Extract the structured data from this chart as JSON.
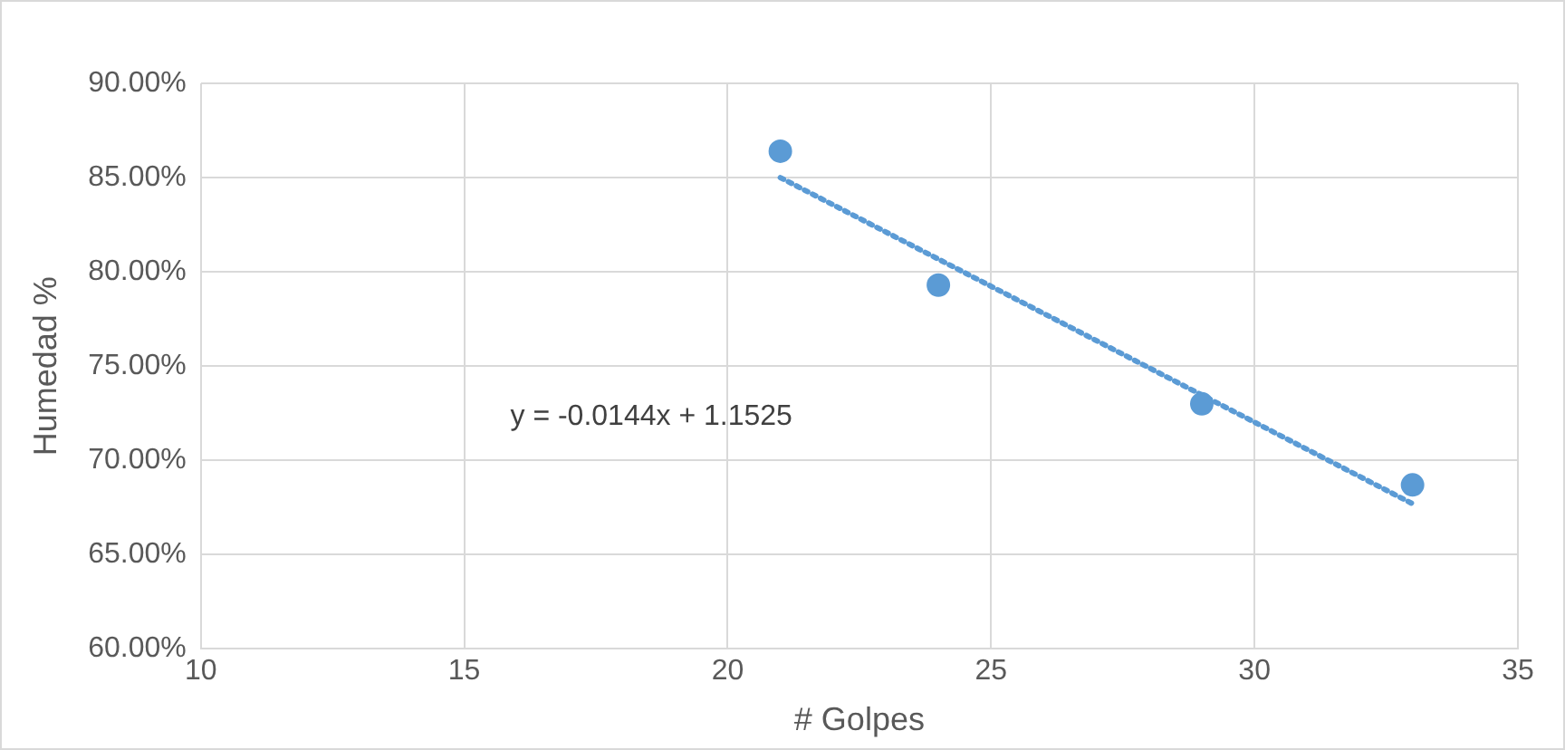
{
  "chart_data": {
    "type": "scatter",
    "xlabel": "# Golpes",
    "ylabel": "Humedad %",
    "xlim": [
      10,
      35
    ],
    "xticks": [
      10,
      15,
      20,
      25,
      30,
      35
    ],
    "ylim": [
      60,
      90
    ],
    "yticks": [
      {
        "value": 60,
        "label": "60.00%"
      },
      {
        "value": 65,
        "label": "65.00%"
      },
      {
        "value": 70,
        "label": "70.00%"
      },
      {
        "value": 75,
        "label": "75.00%"
      },
      {
        "value": 80,
        "label": "80.00%"
      },
      {
        "value": 85,
        "label": "85.00%"
      },
      {
        "value": 90,
        "label": "90.00%"
      }
    ],
    "grid": true,
    "legend": false,
    "series": [
      {
        "type": "scatter",
        "color": "#5b9bd5",
        "marker": "circle",
        "x": [
          21,
          24,
          29,
          33
        ],
        "values": [
          86.4,
          79.3,
          73.0,
          68.7
        ]
      },
      {
        "type": "line",
        "color": "#5b9bd5",
        "marker": "none",
        "line_style": "dotted",
        "x": [
          21,
          33
        ],
        "values": [
          85.0,
          67.7
        ]
      }
    ],
    "annotations": [
      "y = -0.0144x + 1.1525"
    ]
  }
}
